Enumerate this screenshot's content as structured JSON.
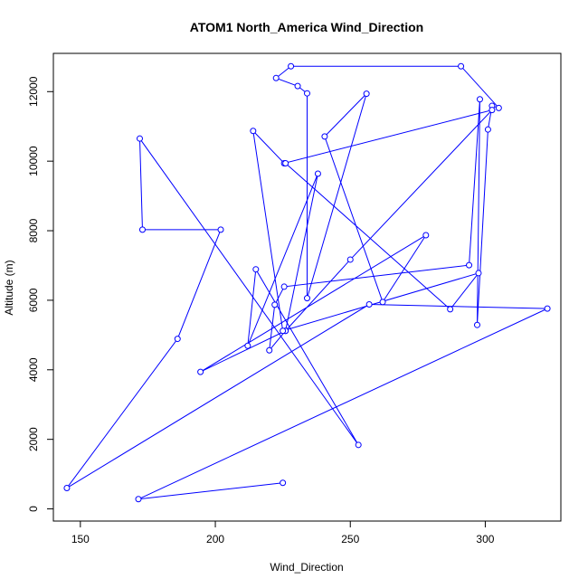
{
  "chart_data": {
    "type": "line",
    "title": "ATOM1 North_America Wind_Direction",
    "xlabel": "Wind_Direction",
    "ylabel": "Altitude (m)",
    "xlim": [
      140,
      328
    ],
    "ylim": [
      -350,
      13100
    ],
    "x_ticks": [
      150,
      200,
      250,
      300
    ],
    "y_ticks": [
      0,
      2000,
      4000,
      6000,
      8000,
      10000,
      12000
    ],
    "grid": false,
    "markers": "open-circle",
    "color": "#0000ff",
    "series": [
      {
        "x": [
          225,
          171.5,
          323,
          257,
          145,
          186,
          202,
          173,
          172,
          253,
          215,
          212,
          238,
          226,
          194.5,
          278,
          262,
          240.5,
          256,
          234,
          234,
          230.5,
          222.5,
          228,
          291,
          305,
          302.5,
          301,
          297,
          298,
          294,
          225.5,
          222,
          220,
          226,
          250,
          302.5,
          225.5,
          214,
          225,
          297.5,
          287,
          226
        ],
        "y": [
          750,
          280,
          5760,
          5880,
          600,
          4890,
          8030,
          8030,
          10650,
          1840,
          6890,
          4690,
          9640,
          5120,
          3940,
          7870,
          5950,
          10710,
          11940,
          6060,
          11950,
          12160,
          12390,
          12730,
          12730,
          11530,
          11590,
          10910,
          5290,
          11780,
          7010,
          6390,
          5870,
          4560,
          5120,
          7170,
          11470,
          9940,
          10870,
          5120,
          6780,
          5740,
          9940
        ]
      }
    ]
  }
}
